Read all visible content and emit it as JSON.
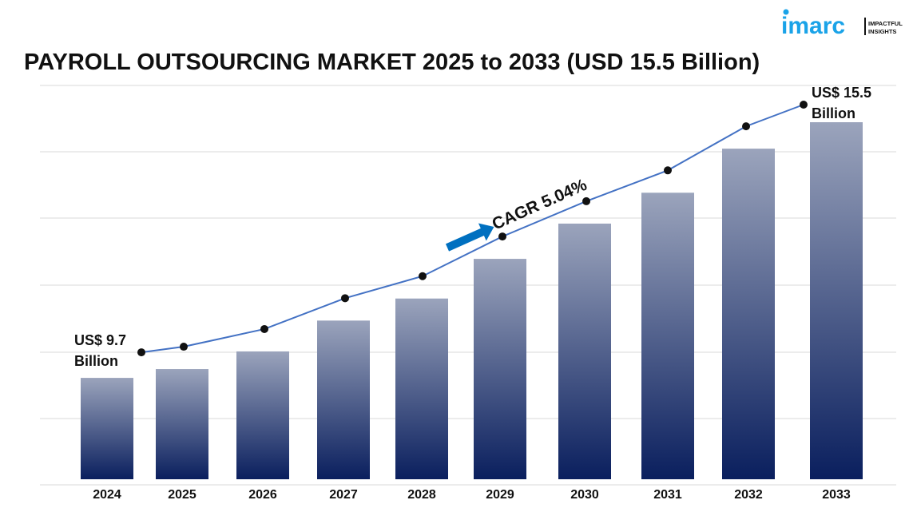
{
  "title": "PAYROLL OUTSOURCING MARKET 2025 to 2033 (USD 15.5 Billion)",
  "logo": {
    "brand": "imarc",
    "tagline_1": "IMPACTFUL",
    "tagline_2": "INSIGHTS",
    "color": "#1aa3e8"
  },
  "chart_data": {
    "type": "bar",
    "title": "PAYROLL OUTSOURCING MARKET 2025 to 2033 (USD 15.5 Billion)",
    "categories": [
      "2024",
      "2025",
      "2026",
      "2027",
      "2028",
      "2029",
      "2030",
      "2031",
      "2032",
      "2033"
    ],
    "values": [
      9.7,
      9.9,
      10.3,
      11.0,
      11.5,
      12.4,
      13.2,
      13.9,
      14.9,
      15.5
    ],
    "unit": "USD Billion",
    "xlabel": "",
    "ylabel": "",
    "ylim": [
      7.4,
      16.5
    ],
    "grid": true,
    "trend_line": true,
    "colors": {
      "bar_top": "#9ba4bc",
      "bar_bottom": "#0a1f5e",
      "line": "#4472c4",
      "marker": "#111111",
      "arrow": "#0070c0"
    },
    "annotations": {
      "start_label_1": "US$ 9.7",
      "start_label_2": "Billion",
      "end_label_1": "US$ 15.5",
      "end_label_2": "Billion",
      "cagr": "CAGR 5.04%"
    }
  }
}
